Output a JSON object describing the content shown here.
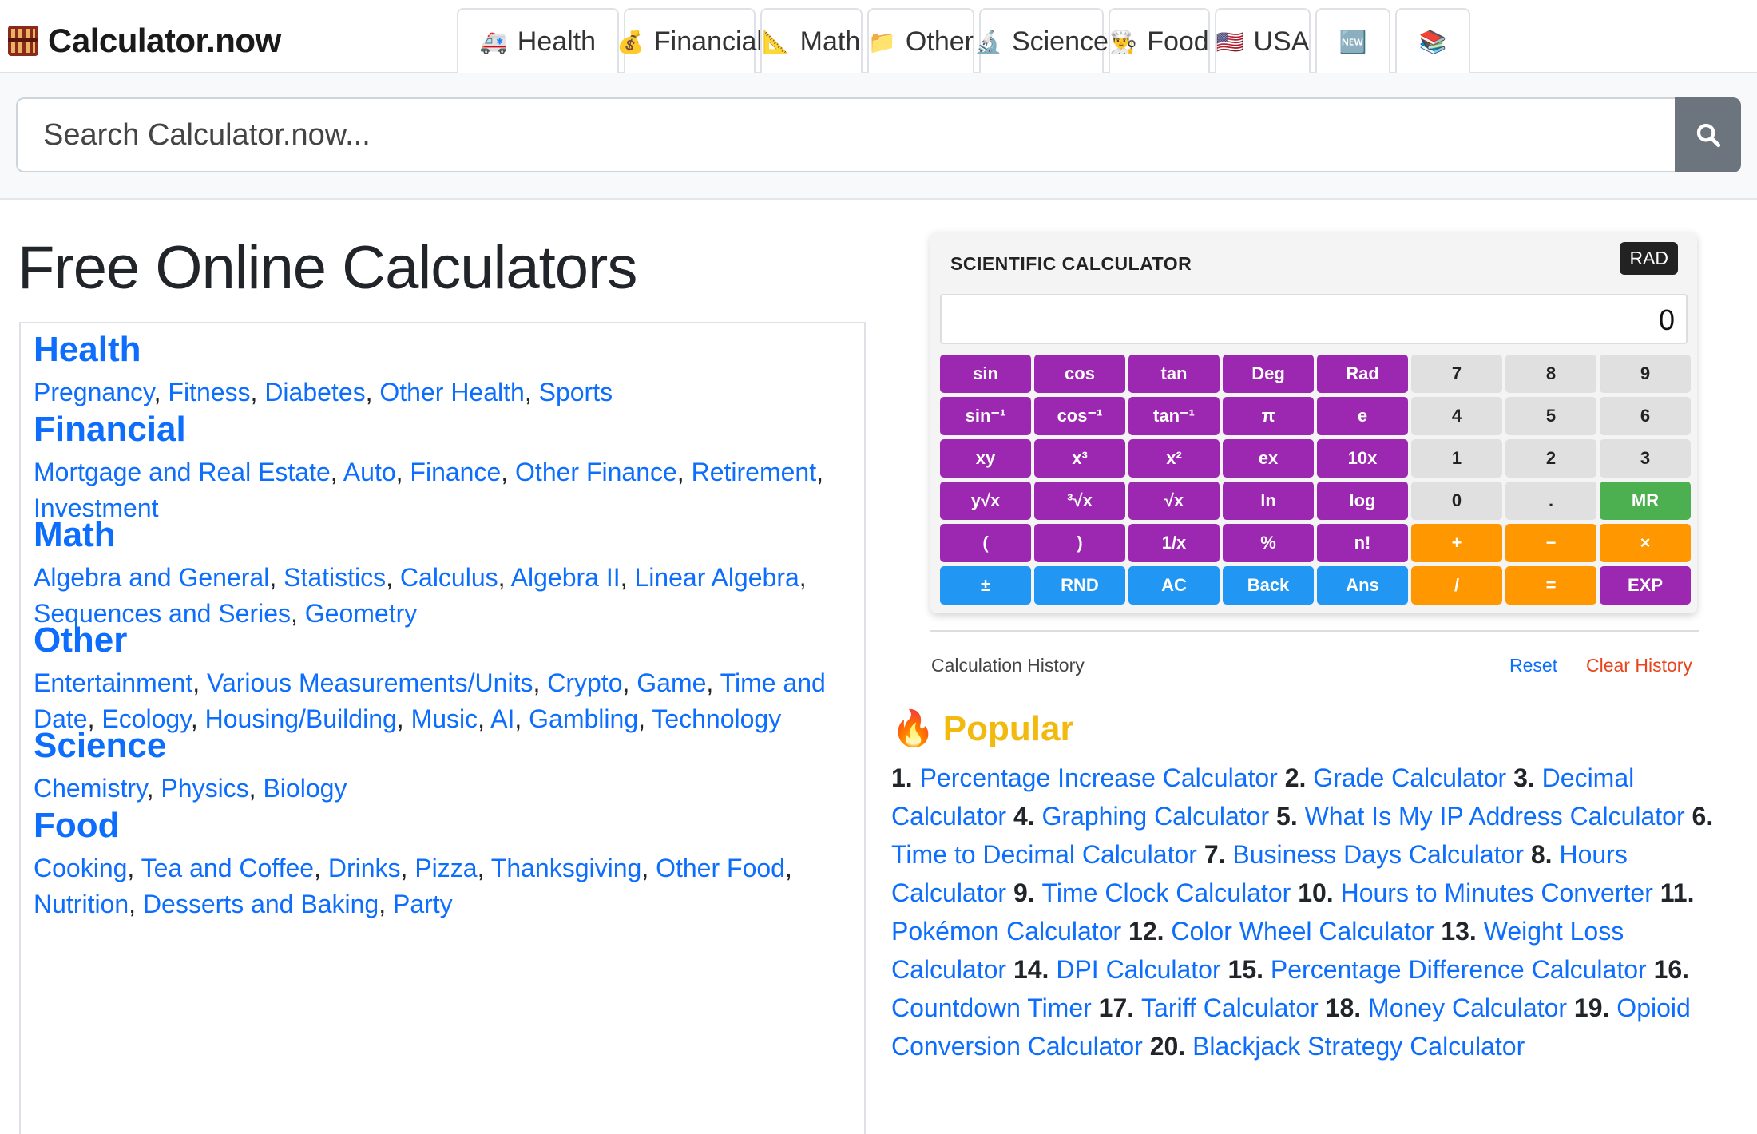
{
  "brand": {
    "name": "Calculator.now"
  },
  "tabs": [
    {
      "icon": "🚑",
      "label": "Health"
    },
    {
      "icon": "💰",
      "label": "Financial"
    },
    {
      "icon": "📐",
      "label": "Math"
    },
    {
      "icon": "📁",
      "label": "Other"
    },
    {
      "icon": "🔬",
      "label": "Science"
    },
    {
      "icon": "👨‍🍳",
      "label": "Food"
    },
    {
      "icon": "🇺🇸",
      "label": "USA"
    },
    {
      "icon": "🆕",
      "label": ""
    },
    {
      "icon": "📚",
      "label": ""
    }
  ],
  "search": {
    "placeholder": "Search Calculator.now...",
    "button_icon": "search-icon"
  },
  "page_title": "Free Online Calculators",
  "categories": [
    {
      "title": "Health",
      "links": [
        "Pregnancy",
        "Fitness",
        "Diabetes",
        "Other Health",
        "Sports"
      ]
    },
    {
      "title": "Financial",
      "links": [
        "Mortgage and Real Estate",
        "Auto",
        "Finance",
        "Other Finance",
        "Retirement",
        "Investment"
      ]
    },
    {
      "title": "Math",
      "links": [
        "Algebra and General",
        "Statistics",
        "Calculus",
        "Algebra II",
        "Linear Algebra",
        "Sequences and Series",
        "Geometry"
      ]
    },
    {
      "title": "Other",
      "links": [
        "Entertainment",
        "Various Measurements/Units",
        "Crypto",
        "Game",
        "Time and Date",
        "Ecology",
        "Housing/Building",
        "Music",
        "AI",
        "Gambling",
        "Technology"
      ]
    },
    {
      "title": "Science",
      "links": [
        "Chemistry",
        "Physics",
        "Biology"
      ]
    },
    {
      "title": "Food",
      "links": [
        "Cooking",
        "Tea and Coffee",
        "Drinks",
        "Pizza",
        "Thanksgiving",
        "Other Food",
        "Nutrition",
        "Desserts and Baking",
        "Party"
      ]
    }
  ],
  "calculator": {
    "title": "SCIENTIFIC CALCULATOR",
    "mode_badge": "RAD",
    "display": "0",
    "keys": [
      [
        {
          "l": "sin",
          "c": "purple"
        },
        {
          "l": "cos",
          "c": "purple"
        },
        {
          "l": "tan",
          "c": "purple"
        },
        {
          "l": "Deg",
          "c": "purple"
        },
        {
          "l": "Rad",
          "c": "purple"
        },
        {
          "l": "7",
          "c": "gray"
        },
        {
          "l": "8",
          "c": "gray"
        },
        {
          "l": "9",
          "c": "gray"
        }
      ],
      [
        {
          "l": "sin⁻¹",
          "c": "purple"
        },
        {
          "l": "cos⁻¹",
          "c": "purple"
        },
        {
          "l": "tan⁻¹",
          "c": "purple"
        },
        {
          "l": "π",
          "c": "purple"
        },
        {
          "l": "e",
          "c": "purple"
        },
        {
          "l": "4",
          "c": "gray"
        },
        {
          "l": "5",
          "c": "gray"
        },
        {
          "l": "6",
          "c": "gray"
        }
      ],
      [
        {
          "l": "xy",
          "c": "purple"
        },
        {
          "l": "x³",
          "c": "purple"
        },
        {
          "l": "x²",
          "c": "purple"
        },
        {
          "l": "ex",
          "c": "purple"
        },
        {
          "l": "10x",
          "c": "purple"
        },
        {
          "l": "1",
          "c": "gray"
        },
        {
          "l": "2",
          "c": "gray"
        },
        {
          "l": "3",
          "c": "gray"
        }
      ],
      [
        {
          "l": "y√x",
          "c": "purple"
        },
        {
          "l": "³√x",
          "c": "purple"
        },
        {
          "l": "√x",
          "c": "purple"
        },
        {
          "l": "ln",
          "c": "purple"
        },
        {
          "l": "log",
          "c": "purple"
        },
        {
          "l": "0",
          "c": "gray"
        },
        {
          "l": ".",
          "c": "gray"
        },
        {
          "l": "MR",
          "c": "green"
        }
      ],
      [
        {
          "l": "(",
          "c": "purple"
        },
        {
          "l": ")",
          "c": "purple"
        },
        {
          "l": "1/x",
          "c": "purple"
        },
        {
          "l": "%",
          "c": "purple"
        },
        {
          "l": "n!",
          "c": "purple"
        },
        {
          "l": "+",
          "c": "orange"
        },
        {
          "l": "−",
          "c": "orange"
        },
        {
          "l": "×",
          "c": "orange"
        }
      ],
      [
        {
          "l": "±",
          "c": "blue"
        },
        {
          "l": "RND",
          "c": "blue"
        },
        {
          "l": "AC",
          "c": "blue"
        },
        {
          "l": "Back",
          "c": "blue"
        },
        {
          "l": "Ans",
          "c": "blue"
        },
        {
          "l": "/",
          "c": "orange"
        },
        {
          "l": "=",
          "c": "orange"
        },
        {
          "l": "EXP",
          "c": "purple"
        }
      ]
    ],
    "history_label": "Calculation History",
    "reset_label": "Reset",
    "clear_label": "Clear History"
  },
  "popular": {
    "icon": "🔥",
    "title": "Popular",
    "items": [
      "Percentage Increase Calculator",
      "Grade Calculator",
      "Decimal Calculator",
      "Graphing Calculator",
      "What Is My IP Address Calculator",
      "Time to Decimal Calculator",
      "Business Days Calculator",
      "Hours Calculator",
      "Time Clock Calculator",
      "Hours to Minutes Converter",
      "Pokémon Calculator",
      "Color Wheel Calculator",
      "Weight Loss Calculator",
      "DPI Calculator",
      "Percentage Difference Calculator",
      "Countdown Timer",
      "Tariff Calculator",
      "Money Calculator",
      "Opioid Conversion Calculator",
      "Blackjack Strategy Calculator"
    ]
  },
  "colors": {
    "link": "#0d6efd",
    "popular_title": "#f2b90f",
    "clear": "#e8451e",
    "purple": "#9c27b0",
    "orange": "#ff9800",
    "blue": "#2196f3",
    "green": "#4caf50"
  }
}
